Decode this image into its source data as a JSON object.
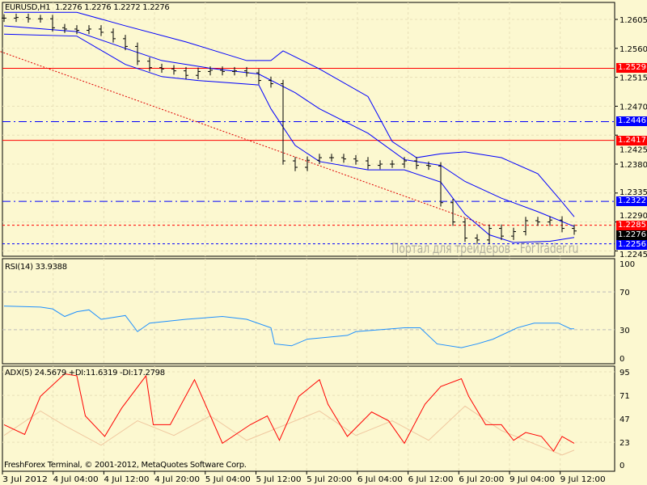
{
  "header": {
    "symbol": "EURUSD,H1",
    "ohlc": "1.2276 1.2276 1.2272 1.2276"
  },
  "rsi": {
    "label": "RSI(14) 33.9388",
    "levels": [
      "100",
      "70",
      "30",
      "0"
    ]
  },
  "adx": {
    "label": "ADX(5) 24.5679 +DI:11.6319 -DI:17.2798",
    "levels": [
      "95",
      "71",
      "47",
      "23",
      "0"
    ]
  },
  "footer": {
    "copyright": "FreshForex Terminal, © 2001-2012, MetaQuotes Software Corp."
  },
  "watermark": "Портал для трейдеров - ForTrader.ru",
  "time_axis": [
    "3 Jul 2012",
    "4 Jul 04:00",
    "4 Jul 12:00",
    "4 Jul 20:00",
    "5 Jul 04:00",
    "5 Jul 12:00",
    "5 Jul 20:00",
    "6 Jul 04:00",
    "6 Jul 12:00",
    "6 Jul 20:00",
    "9 Jul 04:00",
    "9 Jul 12:00"
  ],
  "price_axis": [
    "1.2605",
    "1.2560",
    "1.2515",
    "1.2470",
    "1.2425",
    "1.2380",
    "1.2335",
    "1.2290",
    "1.2245"
  ],
  "price_tags": [
    {
      "value": "1.2529",
      "color": "#ff0000"
    },
    {
      "value": "1.2446",
      "color": "#0000ff"
    },
    {
      "value": "1.2417",
      "color": "#ff0000"
    },
    {
      "value": "1.2322",
      "color": "#0000ff"
    },
    {
      "value": "1.2285",
      "color": "#ff0000"
    },
    {
      "value": "1.2276",
      "color": "#000000"
    },
    {
      "value": "1.2256",
      "color": "#0000ff"
    }
  ],
  "chart_data": [
    {
      "type": "ohlc",
      "title": "EURUSD,H1",
      "ylim": [
        1.2235,
        1.2635
      ],
      "closes": [
        1.2607,
        1.2608,
        1.2606,
        1.2606,
        1.2592,
        1.259,
        1.2588,
        1.259,
        1.2585,
        1.2575,
        1.2563,
        1.254,
        1.253,
        1.2528,
        1.2525,
        1.2518,
        1.2524,
        1.2526,
        1.2524,
        1.2525,
        1.2522,
        1.251,
        1.2505,
        1.2385,
        1.2375,
        1.2386,
        1.239,
        1.239,
        1.2388,
        1.2385,
        1.2378,
        1.238,
        1.238,
        1.2385,
        1.2378,
        1.2377,
        1.232,
        1.229,
        1.2265,
        1.2262,
        1.228,
        1.2268,
        1.2275,
        1.2292,
        1.229,
        1.2293,
        1.228,
        1.2276
      ],
      "bollinger": {
        "upper": [
          [
            0,
            1.2616
          ],
          [
            6,
            1.2616
          ],
          [
            10,
            1.2595
          ],
          [
            15,
            1.257
          ],
          [
            20,
            1.2541
          ],
          [
            22,
            1.2541
          ],
          [
            23,
            1.2556
          ],
          [
            26,
            1.2528
          ],
          [
            30,
            1.2485
          ],
          [
            32,
            1.2415
          ],
          [
            34,
            1.239
          ],
          [
            36,
            1.2396
          ],
          [
            38,
            1.2399
          ],
          [
            41,
            1.239
          ],
          [
            44,
            1.2365
          ],
          [
            46,
            1.2321
          ],
          [
            47,
            1.2298
          ]
        ],
        "middle": [
          [
            0,
            1.2595
          ],
          [
            6,
            1.2586
          ],
          [
            10,
            1.256
          ],
          [
            13,
            1.2541
          ],
          [
            17,
            1.2529
          ],
          [
            21,
            1.252
          ],
          [
            24,
            1.2491
          ],
          [
            26,
            1.2466
          ],
          [
            30,
            1.2428
          ],
          [
            33,
            1.2387
          ],
          [
            36,
            1.2378
          ],
          [
            38,
            1.2353
          ],
          [
            41,
            1.2327
          ],
          [
            44,
            1.2306
          ],
          [
            47,
            1.2283
          ]
        ],
        "lower": [
          [
            0,
            1.2582
          ],
          [
            6,
            1.2579
          ],
          [
            10,
            1.2535
          ],
          [
            13,
            1.2516
          ],
          [
            16,
            1.251
          ],
          [
            21,
            1.2503
          ],
          [
            22,
            1.2466
          ],
          [
            24,
            1.2409
          ],
          [
            26,
            1.2384
          ],
          [
            30,
            1.2371
          ],
          [
            33,
            1.2371
          ],
          [
            36,
            1.2352
          ],
          [
            38,
            1.2302
          ],
          [
            40,
            1.227
          ],
          [
            42,
            1.2258
          ],
          [
            45,
            1.226
          ],
          [
            47,
            1.2266
          ]
        ]
      },
      "levels": [
        {
          "price": 1.2529,
          "style": "solid",
          "color": "#ff0000"
        },
        {
          "price": 1.2446,
          "style": "dashdot",
          "color": "#0000ff"
        },
        {
          "price": 1.2417,
          "style": "solid",
          "color": "#ff0000"
        },
        {
          "price": 1.2322,
          "style": "dashdot",
          "color": "#0000ff"
        },
        {
          "price": 1.2285,
          "style": "dotted",
          "color": "#ff0000"
        },
        {
          "price": 1.2256,
          "style": "dotted",
          "color": "#0000ff"
        }
      ],
      "trendline": [
        [
          -0.3,
          1.2555
        ],
        [
          39.7,
          1.2285
        ]
      ]
    },
    {
      "type": "line",
      "title": "RSI(14)",
      "ylim": [
        0,
        100
      ],
      "guides": [
        70,
        30
      ],
      "values": [
        [
          0,
          55
        ],
        [
          3,
          54
        ],
        [
          4,
          52
        ],
        [
          5,
          44
        ],
        [
          6,
          49
        ],
        [
          7,
          51
        ],
        [
          8,
          41
        ],
        [
          10,
          45
        ],
        [
          11,
          28
        ],
        [
          12,
          37
        ],
        [
          15,
          41
        ],
        [
          18,
          44
        ],
        [
          20,
          41
        ],
        [
          22,
          32
        ],
        [
          22.3,
          15
        ],
        [
          23.7,
          13
        ],
        [
          25,
          20
        ],
        [
          28.3,
          24
        ],
        [
          29,
          28
        ],
        [
          33,
          32
        ],
        [
          34.3,
          32
        ],
        [
          35.7,
          15
        ],
        [
          37.7,
          11
        ],
        [
          39,
          15
        ],
        [
          40.3,
          20
        ],
        [
          42.3,
          32
        ],
        [
          43.7,
          37
        ],
        [
          45.7,
          37
        ],
        [
          46.7,
          31
        ],
        [
          47,
          31
        ]
      ]
    },
    {
      "type": "line",
      "title": "ADX(5)",
      "ylim": [
        0,
        100
      ],
      "guides": [
        95,
        71,
        47,
        23
      ],
      "series": [
        {
          "name": "ADX",
          "color": "#ff0000",
          "values": [
            [
              0,
              41
            ],
            [
              1.7,
              31
            ],
            [
              3,
              70
            ],
            [
              5,
              93
            ],
            [
              6,
              91
            ],
            [
              6.7,
              50
            ],
            [
              8.3,
              29
            ],
            [
              9.7,
              58
            ],
            [
              11.7,
              91
            ],
            [
              12.3,
              41
            ],
            [
              13.7,
              41
            ],
            [
              15.7,
              87
            ],
            [
              18,
              22
            ],
            [
              20.3,
              41
            ],
            [
              21.7,
              50
            ],
            [
              22.7,
              25
            ],
            [
              24.3,
              70
            ],
            [
              26,
              87
            ],
            [
              26.7,
              62
            ],
            [
              28.3,
              29
            ],
            [
              30.3,
              54
            ],
            [
              31.7,
              45
            ],
            [
              33,
              22
            ],
            [
              34.7,
              62
            ],
            [
              36,
              80
            ],
            [
              37.7,
              88
            ],
            [
              38.3,
              70
            ],
            [
              39.7,
              41
            ],
            [
              41,
              41
            ],
            [
              42,
              25
            ],
            [
              43,
              33
            ],
            [
              44.3,
              29
            ],
            [
              45.3,
              14
            ],
            [
              46,
              29
            ],
            [
              47,
              22
            ]
          ]
        },
        {
          "name": "DI",
          "color": "#f0c8a0",
          "values": [
            [
              0,
              30
            ],
            [
              3,
              55
            ],
            [
              5,
              40
            ],
            [
              8,
              20
            ],
            [
              11,
              45
            ],
            [
              14,
              30
            ],
            [
              17,
              50
            ],
            [
              20,
              25
            ],
            [
              23,
              40
            ],
            [
              26,
              55
            ],
            [
              29,
              30
            ],
            [
              32,
              45
            ],
            [
              35,
              25
            ],
            [
              38,
              60
            ],
            [
              41,
              35
            ],
            [
              44,
              20
            ],
            [
              46,
              10
            ],
            [
              47,
              15
            ]
          ]
        }
      ]
    }
  ]
}
